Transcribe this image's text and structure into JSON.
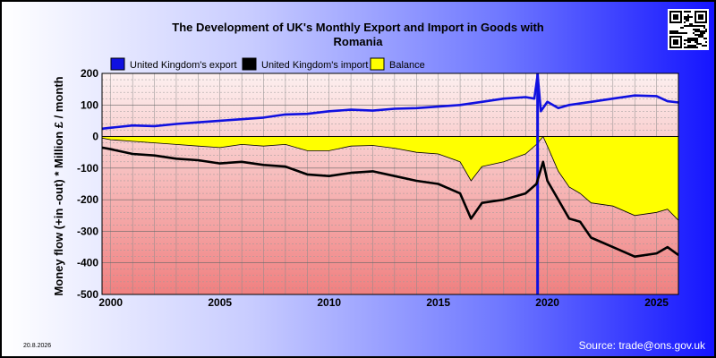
{
  "header": {
    "title_line1": "The Development of UK's Monthly Export and Import in Goods with",
    "title_line2": "Romania"
  },
  "footer": {
    "date": "20.8.2026",
    "source": "Source: trade@ons.gov.uk"
  },
  "colors": {
    "export": "#1010e0",
    "import": "#000000",
    "balance": "#ffff00",
    "plot_top": "#fdf0f0",
    "plot_bottom": "#f08080"
  },
  "qr_icon": "qr-code-icon",
  "chart_data": {
    "type": "line",
    "title": "The Development of UK's Monthly Export and Import in Goods with Romania",
    "ylabel": "Money flow (+in -out) * Million £ / month",
    "xlabel": "",
    "xlim": [
      1999.6,
      2026.0
    ],
    "ylim": [
      -500,
      200
    ],
    "y_ticks": [
      200,
      100,
      0,
      -100,
      -200,
      -300,
      -400,
      -500
    ],
    "x_tick_labels": [
      "2000",
      "2005",
      "2010",
      "2015",
      "2020",
      "2025"
    ],
    "x_tick_values": [
      2000,
      2005,
      2010,
      2015,
      2020,
      2025
    ],
    "grid": true,
    "legend_position": "top",
    "annotation_line_x": 2019.55,
    "series": [
      {
        "name": "United Kingdom's export",
        "color": "#1010e0",
        "x": [
          1999.6,
          2000,
          2001,
          2002,
          2003,
          2004,
          2005,
          2006,
          2007,
          2008,
          2009,
          2010,
          2011,
          2012,
          2013,
          2014,
          2015,
          2016,
          2017,
          2018,
          2019,
          2019.4,
          2019.55,
          2019.7,
          2020,
          2020.5,
          2021,
          2022,
          2023,
          2024,
          2025,
          2025.5,
          2026
        ],
        "y": [
          25,
          28,
          35,
          33,
          40,
          45,
          50,
          55,
          60,
          70,
          72,
          80,
          85,
          82,
          88,
          90,
          95,
          100,
          110,
          120,
          125,
          120,
          195,
          80,
          110,
          90,
          100,
          110,
          120,
          130,
          128,
          112,
          108
        ]
      },
      {
        "name": "United Kingdom's import",
        "color": "#000000",
        "x": [
          1999.6,
          2000,
          2001,
          2002,
          2003,
          2004,
          2005,
          2006,
          2007,
          2008,
          2009,
          2010,
          2011,
          2012,
          2013,
          2014,
          2015,
          2016,
          2016.5,
          2017,
          2018,
          2019,
          2019.5,
          2019.8,
          2020,
          2020.5,
          2021,
          2021.5,
          2022,
          2023,
          2024,
          2025,
          2025.5,
          2026
        ],
        "y": [
          -35,
          -40,
          -55,
          -60,
          -70,
          -75,
          -85,
          -80,
          -90,
          -95,
          -120,
          -125,
          -115,
          -110,
          -125,
          -140,
          -150,
          -180,
          -260,
          -210,
          -200,
          -180,
          -150,
          -80,
          -140,
          -200,
          -260,
          -270,
          -320,
          -350,
          -380,
          -370,
          -350,
          -375
        ]
      },
      {
        "name": "Balance",
        "color": "#ffff00",
        "x": [
          1999.6,
          2000,
          2001,
          2002,
          2003,
          2004,
          2005,
          2006,
          2007,
          2008,
          2009,
          2010,
          2011,
          2012,
          2013,
          2014,
          2015,
          2016,
          2016.5,
          2017,
          2018,
          2019,
          2019.5,
          2019.8,
          2020,
          2020.5,
          2021,
          2021.5,
          2022,
          2023,
          2024,
          2025,
          2025.5,
          2026
        ],
        "y": [
          -5,
          -10,
          -15,
          -20,
          -25,
          -30,
          -35,
          -25,
          -30,
          -25,
          -45,
          -45,
          -30,
          -28,
          -37,
          -50,
          -55,
          -80,
          -140,
          -95,
          -80,
          -55,
          -25,
          0,
          -30,
          -110,
          -160,
          -180,
          -210,
          -220,
          -250,
          -240,
          -230,
          -265
        ]
      }
    ]
  }
}
